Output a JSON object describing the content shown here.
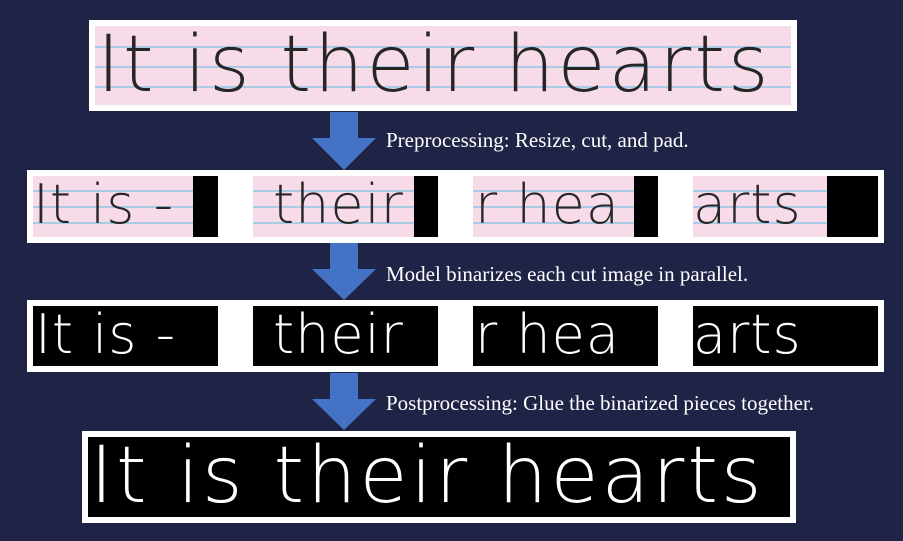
{
  "original_text": "It is their hearts",
  "steps": [
    {
      "caption": "Preprocessing: Resize, cut, and pad."
    },
    {
      "caption": "Model binarizes each cut image in parallel."
    },
    {
      "caption": "Postprocessing: Glue the binarized pieces together."
    }
  ],
  "pieces": [
    {
      "text": "It is -"
    },
    {
      "text": "their"
    },
    {
      "text": "r hea"
    },
    {
      "text": "arts"
    }
  ],
  "result_text": "It is their hearts",
  "colors": {
    "background": "#1f2447",
    "arrow": "#4472c4",
    "paper": "#f8dbe8",
    "rule": "#a9cbe8"
  },
  "icons": [
    "down-arrow-icon"
  ]
}
